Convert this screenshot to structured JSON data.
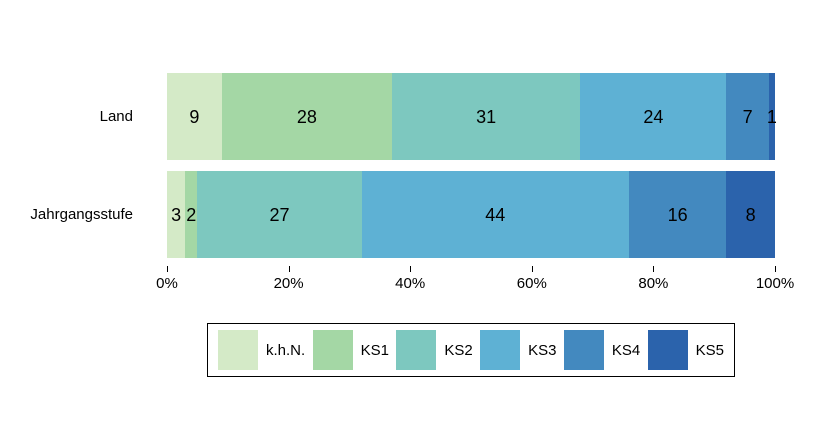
{
  "chart_data": {
    "type": "bar",
    "orientation": "horizontal",
    "stacked": true,
    "unit": "percent",
    "title": "",
    "xlabel": "",
    "ylabel": "",
    "xlim": [
      0,
      100
    ],
    "grid": false,
    "legend_position": "bottom",
    "categories": [
      "Land",
      "Jahrgangsstufe"
    ],
    "legend": [
      "k.h.N.",
      "KS1",
      "KS2",
      "KS3",
      "KS4",
      "KS5"
    ],
    "colors": [
      "#d4eac7",
      "#a4d7a5",
      "#7dc8bf",
      "#5eb1d4",
      "#4389bf",
      "#2b63ac"
    ],
    "series": [
      {
        "name": "k.h.N.",
        "values": [
          9,
          3
        ]
      },
      {
        "name": "KS1",
        "values": [
          28,
          2
        ]
      },
      {
        "name": "KS2",
        "values": [
          31,
          27
        ]
      },
      {
        "name": "KS3",
        "values": [
          24,
          44
        ]
      },
      {
        "name": "KS4",
        "values": [
          7,
          16
        ]
      },
      {
        "name": "KS5",
        "values": [
          1,
          8
        ]
      }
    ],
    "rows": [
      {
        "label": "Land",
        "values": [
          9,
          28,
          31,
          24,
          7,
          1
        ]
      },
      {
        "label": "Jahrgangsstufe",
        "values": [
          3,
          2,
          27,
          44,
          16,
          8
        ]
      }
    ],
    "x_ticks": [
      {
        "value": 0,
        "label": "0%"
      },
      {
        "value": 20,
        "label": "20%"
      },
      {
        "value": 40,
        "label": "40%"
      },
      {
        "value": 60,
        "label": "60%"
      },
      {
        "value": 80,
        "label": "80%"
      },
      {
        "value": 100,
        "label": "100%"
      }
    ]
  }
}
